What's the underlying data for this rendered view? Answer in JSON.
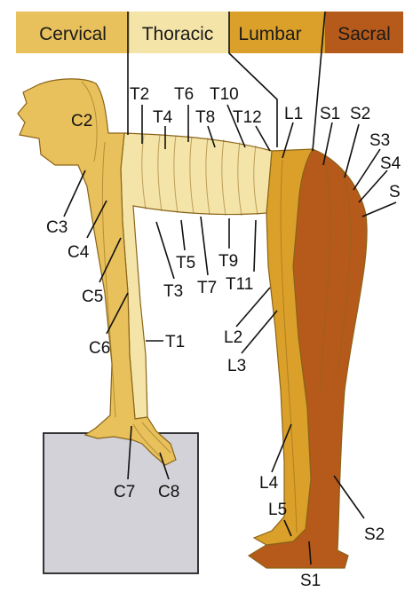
{
  "legend": [
    {
      "label": "Cervical",
      "color": "#e8c15c"
    },
    {
      "label": "Thoracic",
      "color": "#f5e4a8"
    },
    {
      "label": "Lumbar",
      "color": "#dba02a"
    },
    {
      "label": "Sacral",
      "color": "#b55a1a"
    }
  ],
  "colors": {
    "cervical": "#e8c15c",
    "thoracic": "#f5e4a8",
    "lumbar": "#dba02a",
    "sacral": "#b55a1a",
    "box": "#d2d2d8"
  },
  "labels": {
    "c2": "C2",
    "c3": "C3",
    "c4": "C4",
    "c5": "C5",
    "c6": "C6",
    "c7": "C7",
    "c8": "C8",
    "t1": "T1",
    "t2": "T2",
    "t3": "T3",
    "t4": "T4",
    "t5": "T5",
    "t6": "T6",
    "t7": "T7",
    "t8": "T8",
    "t9": "T9",
    "t10": "T10",
    "t11": "T11",
    "t12": "T12",
    "l1": "L1",
    "l2": "L2",
    "l3": "L3",
    "l4": "L4",
    "l5": "L5",
    "s1_top": "S1",
    "s2_top": "S2",
    "s3": "S3",
    "s4": "S4",
    "s5": "S",
    "s2_bottom": "S2",
    "s1_bottom": "S1"
  }
}
